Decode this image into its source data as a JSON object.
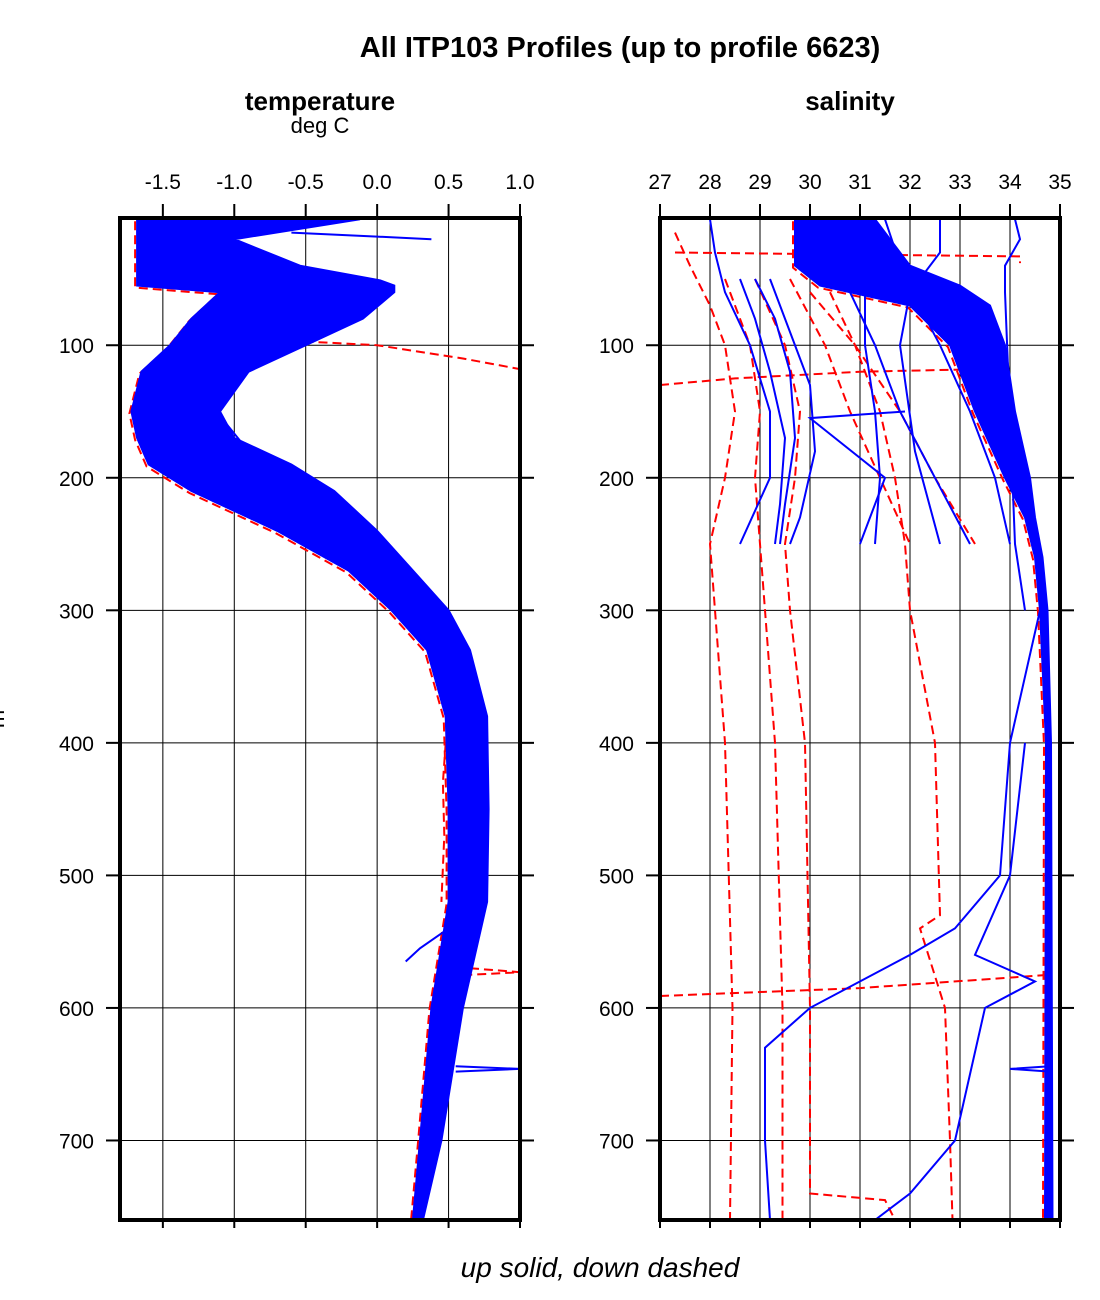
{
  "title": "All ITP103 Profiles (up to profile 6623)",
  "xlabel": "up solid, down dashed",
  "ylabel": "m",
  "colors": {
    "up": "#0000ff",
    "down": "#ff0000"
  },
  "chart_data": [
    {
      "type": "line",
      "title": "temperature",
      "unit_label": "deg C",
      "xlim": [
        -1.8,
        1.0
      ],
      "ylim": [
        760,
        4
      ],
      "y_reversed": true,
      "grid": true,
      "xticks": [
        "-1.5",
        "-1.0",
        "-0.5",
        "0.0",
        "0.5",
        "1.0"
      ],
      "xtick_values": [
        -1.5,
        -1.0,
        -0.5,
        0.0,
        0.5,
        1.0
      ],
      "yticks": [
        "100",
        "200",
        "300",
        "400",
        "500",
        "600",
        "700"
      ],
      "ytick_values": [
        100,
        200,
        300,
        400,
        500,
        600,
        700
      ],
      "up_envelope": {
        "depth": [
          5,
          20,
          40,
          51,
          55,
          60,
          80,
          100,
          120,
          150,
          170,
          190,
          210,
          240,
          270,
          300,
          330,
          380,
          450,
          520,
          600,
          700,
          760
        ],
        "min": [
          -1.68,
          -1.68,
          -1.68,
          -1.68,
          -1.68,
          -1.1,
          -1.3,
          -1.45,
          -1.65,
          -1.72,
          -1.68,
          -1.6,
          -1.3,
          -0.7,
          -0.2,
          0.1,
          0.35,
          0.48,
          0.5,
          0.5,
          0.38,
          0.3,
          0.25
        ],
        "max": [
          -0.12,
          -1.0,
          -0.54,
          0.02,
          0.12,
          0.12,
          -0.1,
          -0.5,
          -0.9,
          -1.1,
          -1.0,
          -0.6,
          -0.3,
          0.0,
          0.25,
          0.5,
          0.65,
          0.77,
          0.78,
          0.77,
          0.6,
          0.45,
          0.32
        ]
      },
      "up_outliers": [
        {
          "depth": [
            15,
            18,
            20
          ],
          "values": [
            -0.6,
            0.0,
            0.38
          ]
        },
        {
          "depth": [
            160,
            180,
            200,
            220,
            250
          ],
          "values": [
            -1.05,
            -0.9,
            -0.6,
            -0.35,
            -0.05
          ]
        },
        {
          "depth": [
            540,
            555,
            565
          ],
          "values": [
            0.5,
            0.3,
            0.2
          ]
        },
        {
          "depth": [
            644,
            646,
            648
          ],
          "values": [
            0.55,
            1.0,
            0.55
          ]
        }
      ],
      "down_outliers": [
        {
          "depth": [
            95,
            100,
            110,
            118
          ],
          "values": [
            -0.9,
            0.0,
            0.6,
            1.0
          ]
        },
        {
          "depth": [
            110,
            120,
            135
          ],
          "values": [
            -1.55,
            -1.3,
            -1.1
          ]
        },
        {
          "depth": [
            400,
            430,
            470,
            520
          ],
          "values": [
            0.48,
            0.46,
            0.47,
            0.45
          ]
        },
        {
          "depth": [
            570,
            573,
            575
          ],
          "values": [
            0.65,
            1.0,
            0.65
          ]
        },
        {
          "depth": [
            600,
            650,
            700,
            740
          ],
          "values": [
            0.42,
            0.36,
            0.3,
            0.27
          ]
        }
      ]
    },
    {
      "type": "line",
      "title": "salinity",
      "xlim": [
        27,
        35
      ],
      "ylim": [
        760,
        4
      ],
      "y_reversed": true,
      "grid": true,
      "xticks": [
        "27",
        "28",
        "29",
        "30",
        "31",
        "32",
        "33",
        "34",
        "35"
      ],
      "xtick_values": [
        27,
        28,
        29,
        30,
        31,
        32,
        33,
        34,
        35
      ],
      "yticks": [
        "100",
        "200",
        "300",
        "400",
        "500",
        "600",
        "700"
      ],
      "ytick_values": [
        100,
        200,
        300,
        400,
        500,
        600,
        700
      ],
      "up_envelope": {
        "depth": [
          5,
          40,
          55,
          70,
          100,
          150,
          200,
          230,
          260,
          300,
          400,
          760
        ],
        "min": [
          29.7,
          29.7,
          30.2,
          32.0,
          32.8,
          33.3,
          33.9,
          34.3,
          34.5,
          34.6,
          34.72,
          34.7
        ],
        "max": [
          31.3,
          32.0,
          33.0,
          33.6,
          33.9,
          34.1,
          34.4,
          34.5,
          34.65,
          34.75,
          34.82,
          34.85
        ]
      },
      "up_outliers": [
        {
          "depth": [
            5,
            30,
            60,
            100,
            150,
            200,
            250
          ],
          "values": [
            28.0,
            28.1,
            28.3,
            28.8,
            29.2,
            29.2,
            28.6
          ]
        },
        {
          "depth": [
            50,
            80,
            120,
            170,
            220,
            250
          ],
          "values": [
            28.6,
            28.9,
            29.2,
            29.5,
            29.4,
            29.3
          ]
        },
        {
          "depth": [
            50,
            80,
            120,
            170,
            220,
            250
          ],
          "values": [
            28.9,
            29.3,
            29.6,
            29.7,
            29.5,
            29.4
          ]
        },
        {
          "depth": [
            50,
            90,
            130,
            180,
            230,
            250
          ],
          "values": [
            29.2,
            29.6,
            30.0,
            30.1,
            29.8,
            29.6
          ]
        },
        {
          "depth": [
            5,
            60,
            100,
            150,
            200,
            250
          ],
          "values": [
            30.5,
            30.8,
            31.3,
            31.8,
            32.5,
            33.2
          ]
        },
        {
          "depth": [
            5,
            50,
            100,
            150,
            200,
            250
          ],
          "values": [
            31.5,
            31.9,
            32.6,
            33.2,
            33.7,
            34.0
          ]
        },
        {
          "depth": [
            5,
            30,
            60,
            100,
            180,
            250
          ],
          "values": [
            32.6,
            32.6,
            32.0,
            31.8,
            32.1,
            32.6
          ]
        },
        {
          "depth": [
            5,
            20,
            40,
            60,
            250,
            300
          ],
          "values": [
            34.1,
            34.2,
            33.9,
            33.9,
            34.1,
            34.3
          ]
        },
        {
          "depth": [
            60,
            100,
            150,
            200,
            250
          ],
          "values": [
            31.1,
            31.1,
            31.3,
            31.4,
            31.3
          ]
        },
        {
          "depth": [
            150,
            155,
            200,
            250
          ],
          "values": [
            31.9,
            30.0,
            31.5,
            31.0
          ]
        },
        {
          "depth": [
            300,
            400,
            500,
            540,
            560,
            600,
            630,
            700,
            760
          ],
          "values": [
            34.6,
            34.0,
            33.8,
            32.9,
            32.0,
            30.0,
            29.1,
            29.1,
            29.2
          ]
        },
        {
          "depth": [
            400,
            500,
            560,
            580,
            600,
            700,
            740,
            760
          ],
          "values": [
            34.3,
            34.0,
            33.3,
            34.5,
            33.5,
            32.9,
            32.0,
            31.3
          ]
        },
        {
          "depth": [
            644,
            646,
            648
          ],
          "values": [
            34.8,
            34.0,
            34.8
          ]
        }
      ],
      "down_outliers": [
        {
          "depth": [
            15,
            40,
            70,
            100,
            150,
            200,
            250,
            300,
            400,
            600,
            760
          ],
          "values": [
            27.3,
            27.6,
            28.0,
            28.3,
            28.5,
            28.3,
            28.0,
            28.1,
            28.3,
            28.45,
            28.4
          ]
        },
        {
          "depth": [
            50,
            100,
            150,
            200,
            250,
            300,
            400,
            600,
            760
          ],
          "values": [
            28.3,
            28.8,
            29.0,
            28.9,
            29.0,
            29.1,
            29.3,
            29.45,
            29.45
          ]
        },
        {
          "depth": [
            50,
            100,
            150,
            200,
            250,
            300,
            400,
            600,
            740,
            745,
            760
          ],
          "values": [
            28.9,
            29.5,
            29.8,
            29.7,
            29.5,
            29.6,
            29.9,
            30.0,
            30.0,
            31.5,
            31.7
          ]
        },
        {
          "depth": [
            60,
            100,
            150,
            200,
            250,
            300,
            400,
            530,
            540,
            600,
            700,
            760
          ],
          "values": [
            30.4,
            30.9,
            31.4,
            31.7,
            31.9,
            32.0,
            32.5,
            32.6,
            32.2,
            32.7,
            32.8,
            32.85
          ]
        },
        {
          "depth": [
            50,
            100,
            150,
            200,
            250
          ],
          "values": [
            29.6,
            30.3,
            30.8,
            31.4,
            32.0
          ]
        },
        {
          "depth": [
            60,
            100,
            150,
            200,
            250
          ],
          "values": [
            30.0,
            30.9,
            31.8,
            32.5,
            33.3
          ]
        },
        {
          "depth": [
            30,
            33,
            38
          ],
          "values": [
            27.3,
            34.2,
            34.2
          ]
        },
        {
          "depth": [
            130,
            125,
            120,
            118
          ],
          "values": [
            27.0,
            28.5,
            31.0,
            33.5
          ]
        },
        {
          "depth": [
            591,
            585,
            575
          ],
          "values": [
            27.0,
            31.0,
            34.8
          ]
        }
      ]
    }
  ]
}
